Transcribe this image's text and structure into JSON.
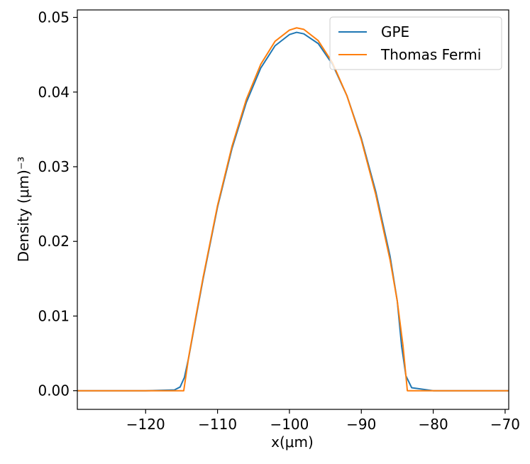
{
  "chart_data": {
    "type": "line",
    "xlabel": "x(μm)",
    "ylabel": "Density (μm)⁻³",
    "xlim": [
      -129.5,
      -69.5
    ],
    "ylim": [
      -0.0025,
      0.051
    ],
    "xticks": [
      -120,
      -110,
      -100,
      -90,
      -80,
      -70
    ],
    "xtick_labels": [
      "−120",
      "−110",
      "−100",
      "−90",
      "−80",
      "−70"
    ],
    "yticks": [
      0.0,
      0.01,
      0.02,
      0.03,
      0.04,
      0.05
    ],
    "ytick_labels": [
      "0.00",
      "0.01",
      "0.02",
      "0.03",
      "0.04",
      "0.05"
    ],
    "legend_position": "top-right",
    "grid": false,
    "series": [
      {
        "name": "GPE",
        "color": "#1f77b4",
        "x": [
          -129.5,
          -120,
          -116,
          -115.2,
          -114.6,
          -114,
          -113,
          -112,
          -110,
          -108,
          -106,
          -104,
          -102,
          -100,
          -99,
          -98,
          -96,
          -94,
          -92,
          -90,
          -88,
          -86,
          -85,
          -84.4,
          -83.8,
          -83,
          -80,
          -69.5
        ],
        "y": [
          0.0,
          0.0,
          0.0001,
          0.0005,
          0.0018,
          0.0045,
          0.0098,
          0.015,
          0.0246,
          0.0324,
          0.0386,
          0.0432,
          0.0462,
          0.0477,
          0.048,
          0.0478,
          0.0465,
          0.0437,
          0.0395,
          0.0338,
          0.0267,
          0.018,
          0.012,
          0.006,
          0.002,
          0.0004,
          0.0,
          0.0
        ]
      },
      {
        "name": "Thomas Fermi",
        "color": "#ff7f0e",
        "x": [
          -129.5,
          -114.7,
          -114.7,
          -114,
          -113,
          -112,
          -110,
          -108,
          -106,
          -104,
          -102,
          -100,
          -99,
          -98,
          -96,
          -94,
          -92,
          -90,
          -88,
          -86,
          -85,
          -84.2,
          -83.6,
          -83.6,
          -69.5
        ],
        "y": [
          0.0,
          0.0,
          0.0,
          0.0046,
          0.01,
          0.0152,
          0.0248,
          0.0327,
          0.039,
          0.0437,
          0.0468,
          0.0483,
          0.0486,
          0.0484,
          0.0469,
          0.0439,
          0.0395,
          0.0336,
          0.0263,
          0.0175,
          0.012,
          0.006,
          0.0,
          0.0,
          0.0
        ]
      }
    ]
  }
}
